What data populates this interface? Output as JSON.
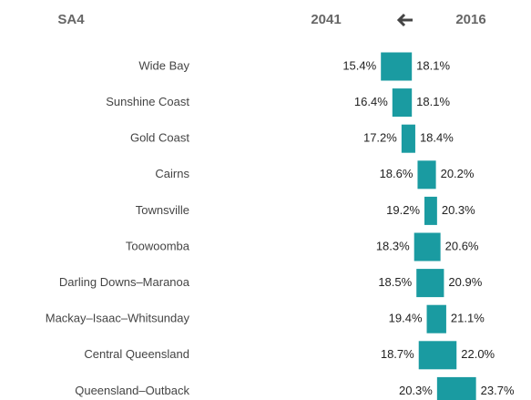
{
  "chart_data": {
    "type": "range-bar",
    "category_header": "SA4",
    "categories": [
      "Wide Bay",
      "Sunshine Coast",
      "Gold Coast",
      "Cairns",
      "Townsville",
      "Toowoomba",
      "Darling Downs–Maranoa",
      "Mackay–Isaac–Whitsunday",
      "Central Queensland",
      "Queensland–Outback"
    ],
    "series": [
      {
        "name": "2041",
        "values": [
          15.4,
          16.4,
          17.2,
          18.6,
          19.2,
          18.3,
          18.5,
          19.4,
          18.7,
          20.3
        ],
        "value_labels": [
          "15.4%",
          "16.4%",
          "17.2%",
          "18.6%",
          "19.2%",
          "18.3%",
          "18.5%",
          "19.4%",
          "18.7%",
          "20.3%"
        ]
      },
      {
        "name": "2016",
        "values": [
          18.1,
          18.1,
          18.4,
          20.2,
          20.3,
          20.6,
          20.9,
          21.1,
          22.0,
          23.7
        ],
        "value_labels": [
          "18.1%",
          "18.1%",
          "18.4%",
          "20.2%",
          "20.3%",
          "20.6%",
          "20.9%",
          "21.1%",
          "22.0%",
          "23.7%"
        ]
      }
    ],
    "color": "#1a9ba1",
    "xlim": [
      13,
      25
    ]
  }
}
